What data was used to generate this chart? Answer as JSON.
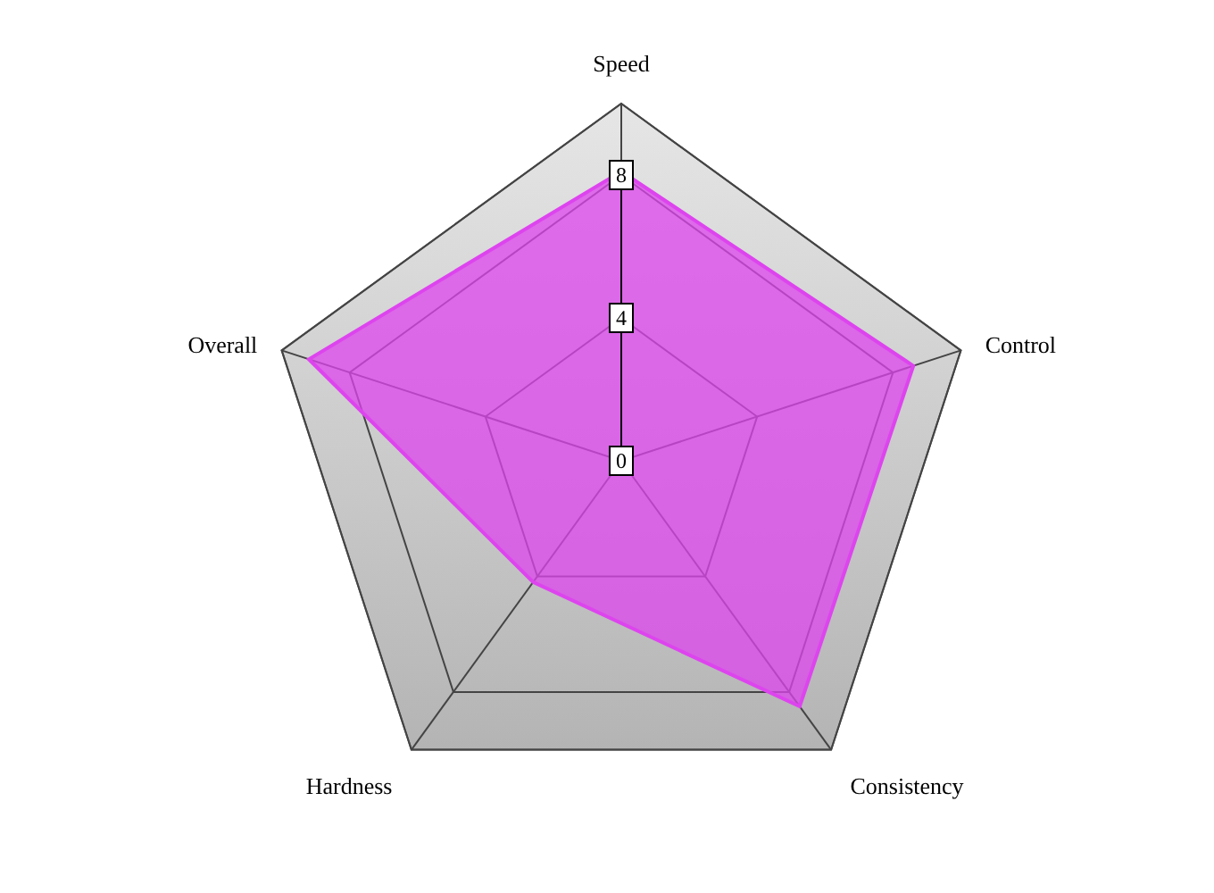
{
  "chart_data": {
    "type": "radar",
    "categories": [
      "Speed",
      "Control",
      "Consistency",
      "Hardness",
      "Overall"
    ],
    "series": [
      {
        "color": "#dd44ee",
        "values": [
          8.1,
          8.6,
          8.5,
          4.2,
          9.2
        ]
      }
    ],
    "ylim": [
      0,
      10
    ],
    "yticks": [
      0,
      4,
      8
    ],
    "grid": true
  }
}
